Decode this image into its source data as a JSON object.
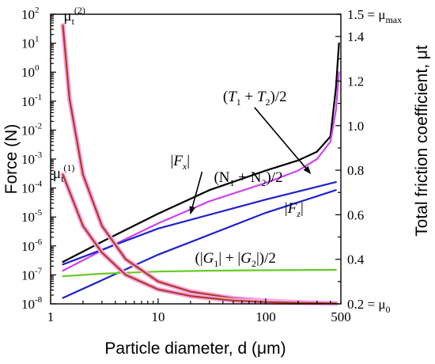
{
  "chart_data": {
    "type": "line",
    "x_scale": "log",
    "y_scale": "log",
    "xlabel": "Particle diameter, d (μm)",
    "ylabel": "Force (N)",
    "y2label": "Total friction coefficient, μt",
    "xlim": [
      1,
      500
    ],
    "ylim": [
      1e-08,
      100
    ],
    "y2lim": [
      0.2,
      1.5
    ],
    "x_ticks": [
      {
        "value": 1,
        "label": "1"
      },
      {
        "value": 10,
        "label": "10"
      },
      {
        "value": 100,
        "label": "100"
      },
      {
        "value": 500,
        "label": "500"
      }
    ],
    "y_ticks": [
      {
        "value": 1e-08,
        "base": "10",
        "exp": "-8"
      },
      {
        "value": 1e-07,
        "base": "10",
        "exp": "-7"
      },
      {
        "value": 1e-06,
        "base": "10",
        "exp": "-6"
      },
      {
        "value": 1e-05,
        "base": "10",
        "exp": "-5"
      },
      {
        "value": 0.0001,
        "base": "10",
        "exp": "-4"
      },
      {
        "value": 0.001,
        "base": "10",
        "exp": "-3"
      },
      {
        "value": 0.01,
        "base": "10",
        "exp": "-2"
      },
      {
        "value": 0.1,
        "base": "10",
        "exp": "-1"
      },
      {
        "value": 1,
        "base": "10",
        "exp": "0"
      },
      {
        "value": 10,
        "base": "10",
        "exp": "1"
      },
      {
        "value": 100,
        "base": "10",
        "exp": "2"
      }
    ],
    "y2_ticks": [
      {
        "value": 0.2,
        "label": "0.2 = μ",
        "sub": "0"
      },
      {
        "value": 0.4,
        "label": "0.4"
      },
      {
        "value": 0.6,
        "label": "0.6"
      },
      {
        "value": 0.8,
        "label": "0.8"
      },
      {
        "value": 1.0,
        "label": "1.0"
      },
      {
        "value": 1.2,
        "label": "1.2"
      },
      {
        "value": 1.4,
        "label": "1.4"
      },
      {
        "value": 1.5,
        "label": "1.5 = μ",
        "sub": "max"
      }
    ],
    "series": [
      {
        "color": "#000000",
        "axis": "left",
        "x": [
          1.3,
          3,
          10,
          30,
          100,
          200,
          300,
          400,
          450,
          480
        ],
        "y": [
          2.8e-07,
          1.4e-06,
          1.3e-05,
          8.5e-05,
          0.0004,
          0.0009,
          0.0018,
          0.006,
          0.3,
          10
        ]
      },
      {
        "color": "#cc44ee",
        "axis": "left",
        "x": [
          1.3,
          3,
          10,
          30,
          100,
          200,
          300,
          400,
          450,
          480
        ],
        "y": [
          1.4e-07,
          7e-07,
          6e-06,
          3.5e-05,
          0.00015,
          0.0004,
          0.001,
          0.004,
          0.05,
          1.0
        ]
      },
      {
        "color": "#2020cc",
        "axis": "left",
        "x": [
          1.3,
          10,
          100,
          450
        ],
        "y": [
          2.3e-07,
          4e-06,
          4e-05,
          0.00016
        ]
      },
      {
        "color": "#2020cc",
        "axis": "left",
        "x": [
          1.3,
          10,
          100,
          450
        ],
        "y": [
          1.6e-08,
          5e-07,
          1.4e-05,
          8.5e-05
        ]
      },
      {
        "color": "#66cc22",
        "axis": "left",
        "x": [
          1.3,
          3,
          10,
          30,
          100,
          450
        ],
        "y": [
          9e-08,
          1.1e-07,
          1.3e-07,
          1.4e-07,
          1.45e-07,
          1.5e-07
        ]
      },
      {
        "color": "#b43a1e",
        "axis": "right",
        "highlight": "#f4a8e8",
        "x": [
          1.3,
          1.5,
          2,
          3,
          5,
          10,
          20,
          50,
          100,
          200,
          450
        ],
        "y": [
          1.45,
          1.12,
          0.78,
          0.55,
          0.4,
          0.3,
          0.255,
          0.225,
          0.213,
          0.207,
          0.203
        ]
      },
      {
        "color": "#b43a1e",
        "axis": "right",
        "highlight": "#f4a8e8",
        "x": [
          1.3,
          2,
          3,
          5,
          10,
          20,
          50,
          100,
          200,
          450
        ],
        "y": [
          0.78,
          0.55,
          0.43,
          0.33,
          0.265,
          0.235,
          0.215,
          0.208,
          0.205,
          0.202
        ]
      }
    ],
    "annotations": [
      {
        "key": "t1t2",
        "parts": [
          [
            "(",
            ""
          ],
          [
            "T",
            "italic"
          ],
          [
            "1",
            "sub"
          ],
          [
            " + ",
            ""
          ],
          [
            "T",
            "italic"
          ],
          [
            "2",
            "sub"
          ],
          [
            ")/2",
            ""
          ]
        ],
        "anchor_x": 40,
        "anchor_y": 0.1,
        "arrow_to_x": 260,
        "arrow_to_y": 0.00032
      },
      {
        "key": "n1n2",
        "parts": [
          [
            "(N",
            ""
          ],
          [
            "1",
            "sub"
          ],
          [
            " + N",
            ""
          ],
          [
            "2",
            "sub"
          ],
          [
            ")/2",
            ""
          ]
        ],
        "anchor_x": 33,
        "anchor_y": 0.00016
      },
      {
        "key": "fx",
        "parts": [
          [
            "|",
            ""
          ],
          [
            "F",
            "italic"
          ],
          [
            "x",
            "subitalic"
          ],
          [
            "|",
            ""
          ]
        ],
        "anchor_x": 13,
        "anchor_y": 0.0006,
        "arrow_to_x": 20,
        "arrow_to_y": 1.3e-05
      },
      {
        "key": "fz",
        "parts": [
          [
            "|",
            ""
          ],
          [
            "F",
            "italic"
          ],
          [
            "z",
            "subitalic"
          ],
          [
            "|",
            ""
          ]
        ],
        "anchor_x": 150,
        "anchor_y": 1.4e-05
      },
      {
        "key": "g",
        "parts": [
          [
            "(|",
            ""
          ],
          [
            "G",
            "italic"
          ],
          [
            "1",
            "sub"
          ],
          [
            "| + |",
            ""
          ],
          [
            "G",
            "italic"
          ],
          [
            "2",
            "sub"
          ],
          [
            "|)/2",
            ""
          ]
        ],
        "anchor_x": 22,
        "anchor_y": 2.6e-07
      },
      {
        "key": "mu2",
        "parts": [
          [
            "μ",
            ""
          ],
          [
            "t",
            "sub"
          ],
          [
            "(2)",
            "sup"
          ]
        ],
        "anchor_x": 1.32,
        "anchor_y": 60
      },
      {
        "key": "mu1",
        "parts": [
          [
            "μ",
            ""
          ],
          [
            "t",
            "sub"
          ],
          [
            "(1)",
            "sup"
          ]
        ],
        "anchor_x": 1.05,
        "anchor_y": 0.00022
      }
    ]
  }
}
